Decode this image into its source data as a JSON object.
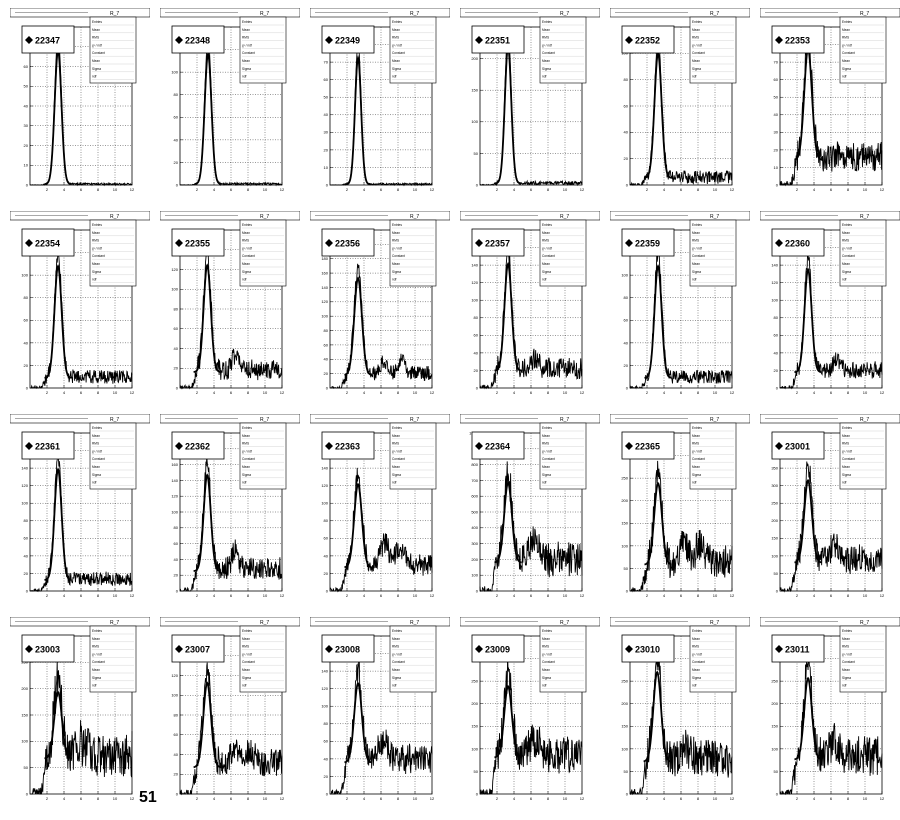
{
  "page_number": "51",
  "panel_header_label": "R_7",
  "stat_labels": [
    "Entries",
    "Mean",
    "RMS",
    "χ² / ndf",
    "Constant",
    "Mean",
    "Sigma",
    "ndf"
  ],
  "chart_data": [
    {
      "type": "histogram",
      "label": "22347",
      "x_range": [
        0,
        12
      ],
      "peak": 3.3,
      "sigma": 0.4,
      "ymax": 80,
      "yticks": [
        0,
        10,
        20,
        30,
        40,
        50,
        60,
        70,
        80
      ],
      "xticks": [
        2,
        4,
        6,
        8,
        10,
        12
      ],
      "amplitude": 75,
      "background": 0.5,
      "noise": 0.5,
      "bumps": []
    },
    {
      "type": "histogram",
      "label": "22348",
      "x_range": [
        0,
        12
      ],
      "peak": 3.3,
      "sigma": 0.4,
      "ymax": 140,
      "yticks": [
        0,
        20,
        40,
        60,
        80,
        100,
        120,
        140
      ],
      "xticks": [
        2,
        4,
        6,
        8,
        10,
        12
      ],
      "amplitude": 128,
      "background": 1,
      "noise": 1,
      "bumps": []
    },
    {
      "type": "histogram",
      "label": "22349",
      "x_range": [
        0,
        12
      ],
      "peak": 3.3,
      "sigma": 0.36,
      "ymax": 90,
      "yticks": [
        0,
        10,
        20,
        30,
        40,
        50,
        60,
        70,
        80,
        90
      ],
      "xticks": [
        2,
        4,
        6,
        8,
        10,
        12
      ],
      "amplitude": 80,
      "background": 0.5,
      "noise": 0.5,
      "bumps": []
    },
    {
      "type": "histogram",
      "label": "22351",
      "x_range": [
        0,
        12
      ],
      "peak": 3.3,
      "sigma": 0.38,
      "ymax": 250,
      "yticks": [
        0,
        50,
        100,
        150,
        200,
        250
      ],
      "xticks": [
        2,
        4,
        6,
        8,
        10,
        12
      ],
      "amplitude": 240,
      "background": 3,
      "noise": 3,
      "bumps": []
    },
    {
      "type": "histogram",
      "label": "22352",
      "x_range": [
        0,
        12
      ],
      "peak": 3.3,
      "sigma": 0.42,
      "ymax": 120,
      "yticks": [
        0,
        20,
        40,
        60,
        80,
        100,
        120
      ],
      "xticks": [
        2,
        4,
        6,
        8,
        10,
        12
      ],
      "amplitude": 105,
      "background": 6,
      "noise": 5,
      "bumps": []
    },
    {
      "type": "histogram",
      "label": "22353",
      "x_range": [
        0,
        12
      ],
      "peak": 3.3,
      "sigma": 0.45,
      "ymax": 90,
      "yticks": [
        0,
        10,
        20,
        30,
        40,
        50,
        60,
        70,
        80,
        90
      ],
      "xticks": [
        2,
        4,
        6,
        8,
        10,
        12
      ],
      "amplitude": 70,
      "background": 16,
      "noise": 8,
      "bumps": []
    },
    {
      "type": "histogram",
      "label": "22354",
      "x_range": [
        0,
        12
      ],
      "peak": 3.3,
      "sigma": 0.42,
      "ymax": 140,
      "yticks": [
        0,
        20,
        40,
        60,
        80,
        100,
        120,
        140
      ],
      "xticks": [
        2,
        4,
        6,
        8,
        10,
        12
      ],
      "amplitude": 110,
      "background": 10,
      "noise": 6,
      "bumps": []
    },
    {
      "type": "histogram",
      "label": "22355",
      "x_range": [
        0,
        12
      ],
      "peak": 3.2,
      "sigma": 0.42,
      "ymax": 160,
      "yticks": [
        0,
        20,
        40,
        60,
        80,
        100,
        120,
        140,
        160
      ],
      "xticks": [
        2,
        4,
        6,
        8,
        10,
        12
      ],
      "amplitude": 120,
      "background": 18,
      "noise": 10,
      "bumps": [
        [
          6.5,
          14,
          0.4
        ]
      ]
    },
    {
      "type": "histogram",
      "label": "22356",
      "x_range": [
        0,
        12
      ],
      "peak": 3.3,
      "sigma": 0.45,
      "ymax": 220,
      "yticks": [
        0,
        20,
        40,
        60,
        80,
        100,
        120,
        140,
        160,
        180,
        200,
        220
      ],
      "xticks": [
        2,
        4,
        6,
        8,
        10,
        12
      ],
      "amplitude": 150,
      "background": 20,
      "noise": 10,
      "bumps": [
        [
          6.3,
          15,
          0.4
        ],
        [
          8.4,
          20,
          0.4
        ]
      ]
    },
    {
      "type": "histogram",
      "label": "22357",
      "x_range": [
        0,
        12
      ],
      "peak": 3.3,
      "sigma": 0.42,
      "ymax": 180,
      "yticks": [
        0,
        20,
        40,
        60,
        80,
        100,
        120,
        140,
        160,
        180
      ],
      "xticks": [
        2,
        4,
        6,
        8,
        10,
        12
      ],
      "amplitude": 135,
      "background": 22,
      "noise": 12,
      "bumps": [
        [
          6.5,
          12,
          0.4
        ]
      ]
    },
    {
      "type": "histogram",
      "label": "22359",
      "x_range": [
        0,
        12
      ],
      "peak": 3.3,
      "sigma": 0.42,
      "ymax": 140,
      "yticks": [
        0,
        20,
        40,
        60,
        80,
        100,
        120,
        140
      ],
      "xticks": [
        2,
        4,
        6,
        8,
        10,
        12
      ],
      "amplitude": 110,
      "background": 10,
      "noise": 6,
      "bumps": []
    },
    {
      "type": "histogram",
      "label": "22360",
      "x_range": [
        0,
        12
      ],
      "peak": 3.3,
      "sigma": 0.42,
      "ymax": 180,
      "yticks": [
        0,
        20,
        40,
        60,
        80,
        100,
        120,
        140,
        160,
        180
      ],
      "xticks": [
        2,
        4,
        6,
        8,
        10,
        12
      ],
      "amplitude": 130,
      "background": 20,
      "noise": 10,
      "bumps": [
        [
          6.6,
          12,
          0.4
        ]
      ]
    },
    {
      "type": "histogram",
      "label": "22361",
      "x_range": [
        0,
        12
      ],
      "peak": 3.3,
      "sigma": 0.42,
      "ymax": 180,
      "yticks": [
        0,
        20,
        40,
        60,
        80,
        100,
        120,
        140,
        160,
        180
      ],
      "xticks": [
        2,
        4,
        6,
        8,
        10,
        12
      ],
      "amplitude": 140,
      "background": 14,
      "noise": 8,
      "bumps": []
    },
    {
      "type": "histogram",
      "label": "22362",
      "x_range": [
        0,
        12
      ],
      "peak": 3.2,
      "sigma": 0.42,
      "ymax": 200,
      "yticks": [
        0,
        20,
        40,
        60,
        80,
        100,
        120,
        140,
        160,
        180,
        200
      ],
      "xticks": [
        2,
        4,
        6,
        8,
        10,
        12
      ],
      "amplitude": 135,
      "background": 28,
      "noise": 14,
      "bumps": [
        [
          6.5,
          25,
          0.35
        ]
      ]
    },
    {
      "type": "histogram",
      "label": "22363",
      "x_range": [
        0,
        12
      ],
      "peak": 3.3,
      "sigma": 0.45,
      "ymax": 180,
      "yticks": [
        0,
        20,
        40,
        60,
        80,
        100,
        120,
        140,
        160,
        180
      ],
      "xticks": [
        2,
        4,
        6,
        8,
        10,
        12
      ],
      "amplitude": 105,
      "background": 30,
      "noise": 12,
      "bumps": [
        [
          6.4,
          25,
          0.5
        ],
        [
          8.3,
          20,
          0.5
        ]
      ]
    },
    {
      "type": "histogram",
      "label": "22364",
      "x_range": [
        0,
        12
      ],
      "peak": 3.3,
      "sigma": 0.45,
      "ymax": 1000,
      "yticks": [
        0,
        100,
        200,
        300,
        400,
        500,
        600,
        700,
        800,
        900,
        1000
      ],
      "xticks": [
        2,
        4,
        6,
        8,
        10,
        12
      ],
      "amplitude": 560,
      "background": 200,
      "noise": 100,
      "bumps": [
        [
          6.3,
          120,
          0.5
        ]
      ]
    },
    {
      "type": "histogram",
      "label": "22365",
      "x_range": [
        0,
        12
      ],
      "peak": 3.3,
      "sigma": 0.45,
      "ymax": 350,
      "yticks": [
        0,
        50,
        100,
        150,
        200,
        250,
        300,
        350
      ],
      "xticks": [
        2,
        4,
        6,
        8,
        10,
        12
      ],
      "amplitude": 200,
      "background": 65,
      "noise": 35,
      "bumps": [
        [
          6.3,
          40,
          0.5
        ],
        [
          8.3,
          40,
          0.5
        ]
      ]
    },
    {
      "type": "histogram",
      "label": "23001",
      "x_range": [
        0,
        12
      ],
      "peak": 3.3,
      "sigma": 0.45,
      "ymax": 450,
      "yticks": [
        0,
        50,
        100,
        150,
        200,
        250,
        300,
        350,
        400,
        450
      ],
      "xticks": [
        2,
        4,
        6,
        8,
        10,
        12
      ],
      "amplitude": 260,
      "background": 90,
      "noise": 40,
      "bumps": [
        [
          6.4,
          40,
          0.5
        ]
      ]
    },
    {
      "type": "histogram",
      "label": "23003",
      "x_range": [
        0,
        12
      ],
      "peak": 3.3,
      "sigma": 0.45,
      "ymax": 300,
      "yticks": [
        0,
        50,
        100,
        150,
        200,
        250,
        300
      ],
      "xticks": [
        2,
        4,
        6,
        8,
        10,
        12
      ],
      "amplitude": 140,
      "background": 75,
      "noise": 40,
      "bumps": [
        [
          6.3,
          25,
          0.5
        ]
      ]
    },
    {
      "type": "histogram",
      "label": "23007",
      "x_range": [
        0,
        12
      ],
      "peak": 3.2,
      "sigma": 0.45,
      "ymax": 160,
      "yticks": [
        0,
        20,
        40,
        60,
        80,
        100,
        120,
        140,
        160
      ],
      "xticks": [
        2,
        4,
        6,
        8,
        10,
        12
      ],
      "amplitude": 95,
      "background": 30,
      "noise": 15,
      "bumps": [
        [
          6.5,
          15,
          0.5
        ],
        [
          8.3,
          12,
          0.5
        ]
      ]
    },
    {
      "type": "histogram",
      "label": "23008",
      "x_range": [
        0,
        12
      ],
      "peak": 3.3,
      "sigma": 0.45,
      "ymax": 180,
      "yticks": [
        0,
        20,
        40,
        60,
        80,
        100,
        120,
        140,
        160,
        180
      ],
      "xticks": [
        2,
        4,
        6,
        8,
        10,
        12
      ],
      "amplitude": 100,
      "background": 40,
      "noise": 16,
      "bumps": [
        [
          6.3,
          20,
          0.5
        ]
      ]
    },
    {
      "type": "histogram",
      "label": "23009",
      "x_range": [
        0,
        12
      ],
      "peak": 3.3,
      "sigma": 0.45,
      "ymax": 350,
      "yticks": [
        0,
        50,
        100,
        150,
        200,
        250,
        300,
        350
      ],
      "xticks": [
        2,
        4,
        6,
        8,
        10,
        12
      ],
      "amplitude": 175,
      "background": 90,
      "noise": 40,
      "bumps": [
        [
          6.4,
          30,
          0.5
        ]
      ]
    },
    {
      "type": "histogram",
      "label": "23010",
      "x_range": [
        0,
        12
      ],
      "peak": 3.2,
      "sigma": 0.45,
      "ymax": 350,
      "yticks": [
        0,
        50,
        100,
        150,
        200,
        250,
        300,
        350
      ],
      "xticks": [
        2,
        4,
        6,
        8,
        10,
        12
      ],
      "amplitude": 220,
      "background": 80,
      "noise": 40,
      "bumps": [
        [
          6.5,
          30,
          0.5
        ]
      ]
    },
    {
      "type": "histogram",
      "label": "23011",
      "x_range": [
        0,
        12
      ],
      "peak": 3.3,
      "sigma": 0.45,
      "ymax": 350,
      "yticks": [
        0,
        50,
        100,
        150,
        200,
        250,
        300,
        350
      ],
      "xticks": [
        2,
        4,
        6,
        8,
        10,
        12
      ],
      "amplitude": 200,
      "background": 85,
      "noise": 40,
      "bumps": [
        [
          6.4,
          30,
          0.5
        ]
      ]
    }
  ]
}
